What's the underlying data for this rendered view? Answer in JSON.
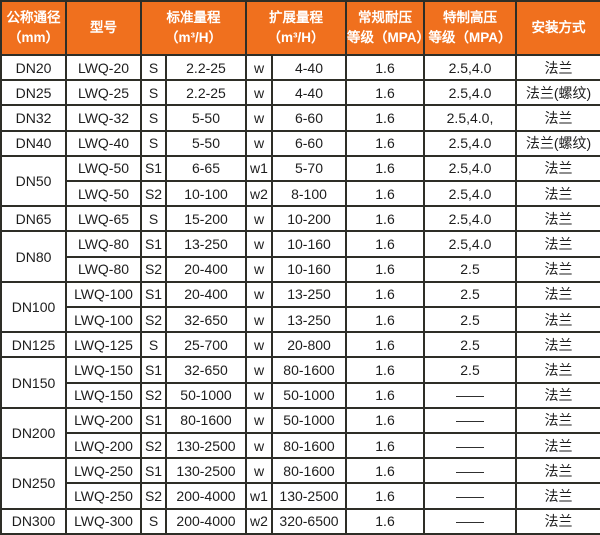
{
  "colors": {
    "header_bg": "#f0701e",
    "header_text": "#ffffff",
    "border": "#2e2e27",
    "body_text": "#1d1d1d"
  },
  "table": {
    "header": {
      "cols": [
        {
          "id": "diameter",
          "line1": "公称通径",
          "line2": "（mm）"
        },
        {
          "id": "model",
          "line1": "型号",
          "line2": ""
        },
        {
          "id": "standard-range",
          "line1": "标准量程",
          "line2": "（m³/H）"
        },
        {
          "id": "extended-range",
          "line1": "扩展量程",
          "line2": "（m³/H）"
        },
        {
          "id": "normal-pressure",
          "line1": "常规耐压",
          "line2": "等级（MPA）"
        },
        {
          "id": "special-pressure",
          "line1": "特制高压",
          "line2": "等级（MPA）"
        },
        {
          "id": "installation",
          "line1": "安装方式",
          "line2": ""
        }
      ]
    },
    "rows": [
      {
        "diameter": "DN20",
        "diameter_rowspan": 1,
        "model": "LWQ-20",
        "s_code": "S",
        "standard": "2.2-25",
        "w_code": "w",
        "extended": "4-40",
        "normal": "1.6",
        "special": "2.5,4.0",
        "install": "法兰"
      },
      {
        "diameter": "DN25",
        "diameter_rowspan": 1,
        "model": "LWQ-25",
        "s_code": "S",
        "standard": "2.2-25",
        "w_code": "w",
        "extended": "4-40",
        "normal": "1.6",
        "special": "2.5,4.0",
        "install": "法兰(螺纹)"
      },
      {
        "diameter": "DN32",
        "diameter_rowspan": 1,
        "model": "LWQ-32",
        "s_code": "S",
        "standard": "5-50",
        "w_code": "w",
        "extended": "6-60",
        "normal": "1.6",
        "special": "2.5,4.0,",
        "install": "法兰"
      },
      {
        "diameter": "DN40",
        "diameter_rowspan": 1,
        "model": "LWQ-40",
        "s_code": "S",
        "standard": "5-50",
        "w_code": "w",
        "extended": "6-60",
        "normal": "1.6",
        "special": "2.5,4.0",
        "install": "法兰(螺纹)"
      },
      {
        "diameter": "DN50",
        "diameter_rowspan": 2,
        "model": "LWQ-50",
        "s_code": "S1",
        "standard": "6-65",
        "w_code": "w1",
        "extended": "5-70",
        "normal": "1.6",
        "special": "2.5,4.0",
        "install": "法兰"
      },
      {
        "diameter": null,
        "model": "LWQ-50",
        "s_code": "S2",
        "standard": "10-100",
        "w_code": "w2",
        "extended": "8-100",
        "normal": "1.6",
        "special": "2.5,4.0",
        "install": "法兰"
      },
      {
        "diameter": "DN65",
        "diameter_rowspan": 1,
        "model": "LWQ-65",
        "s_code": "S",
        "standard": "15-200",
        "w_code": "w",
        "extended": "10-200",
        "normal": "1.6",
        "special": "2.5,4.0",
        "install": "法兰"
      },
      {
        "diameter": "DN80",
        "diameter_rowspan": 2,
        "model": "LWQ-80",
        "s_code": "S1",
        "standard": "13-250",
        "w_code": "w",
        "extended": "10-160",
        "normal": "1.6",
        "special": "2.5,4.0",
        "install": "法兰"
      },
      {
        "diameter": null,
        "model": "LWQ-80",
        "s_code": "S2",
        "standard": "20-400",
        "w_code": "w",
        "extended": "10-160",
        "normal": "1.6",
        "special": "2.5",
        "install": "法兰"
      },
      {
        "diameter": "DN100",
        "diameter_rowspan": 2,
        "model": "LWQ-100",
        "s_code": "S1",
        "standard": "20-400",
        "w_code": "w",
        "extended": "13-250",
        "normal": "1.6",
        "special": "2.5",
        "install": "法兰"
      },
      {
        "diameter": null,
        "model": "LWQ-100",
        "s_code": "S2",
        "standard": "32-650",
        "w_code": "w",
        "extended": "13-250",
        "normal": "1.6",
        "special": "2.5",
        "install": "法兰"
      },
      {
        "diameter": "DN125",
        "diameter_rowspan": 1,
        "model": "LWQ-125",
        "s_code": "S",
        "standard": "25-700",
        "w_code": "w",
        "extended": "20-800",
        "normal": "1.6",
        "special": "2.5",
        "install": "法兰"
      },
      {
        "diameter": "DN150",
        "diameter_rowspan": 2,
        "model": "LWQ-150",
        "s_code": "S1",
        "standard": "32-650",
        "w_code": "w",
        "extended": "80-1600",
        "normal": "1.6",
        "special": "2.5",
        "install": "法兰"
      },
      {
        "diameter": null,
        "model": "LWQ-150",
        "s_code": "S2",
        "standard": "50-1000",
        "w_code": "w",
        "extended": "50-1000",
        "normal": "1.6",
        "special": "——",
        "install": "法兰"
      },
      {
        "diameter": "DN200",
        "diameter_rowspan": 2,
        "model": "LWQ-200",
        "s_code": "S1",
        "standard": "80-1600",
        "w_code": "w",
        "extended": "50-1000",
        "normal": "1.6",
        "special": "——",
        "install": "法兰"
      },
      {
        "diameter": null,
        "model": "LWQ-200",
        "s_code": "S2",
        "standard": "130-2500",
        "w_code": "w",
        "extended": "80-1600",
        "normal": "1.6",
        "special": "——",
        "install": "法兰"
      },
      {
        "diameter": "DN250",
        "diameter_rowspan": 2,
        "model": "LWQ-250",
        "s_code": "S1",
        "standard": "130-2500",
        "w_code": "w",
        "extended": "80-1600",
        "normal": "1.6",
        "special": "——",
        "install": "法兰"
      },
      {
        "diameter": null,
        "model": "LWQ-250",
        "s_code": "S2",
        "standard": "200-4000",
        "w_code": "w1",
        "extended": "130-2500",
        "normal": "1.6",
        "special": "——",
        "install": "法兰"
      },
      {
        "diameter": "DN300",
        "diameter_rowspan": 1,
        "model": "LWQ-300",
        "s_code": "S",
        "standard": "200-4000",
        "w_code": "w2",
        "extended": "320-6500",
        "normal": "1.6",
        "special": "——",
        "install": "法兰"
      }
    ]
  }
}
